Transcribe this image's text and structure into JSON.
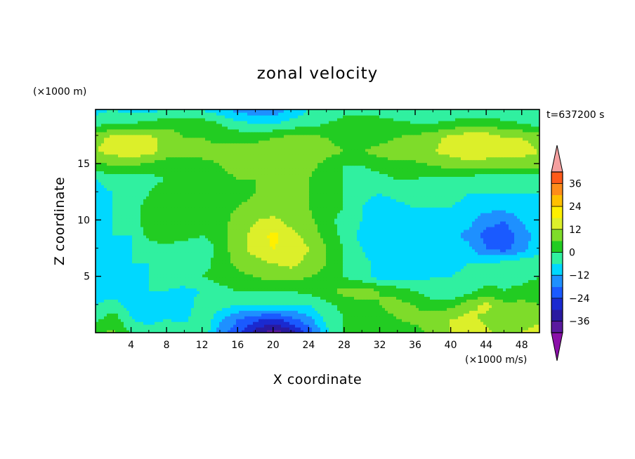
{
  "chart_data": {
    "type": "heatmap",
    "title": "zonal velocity",
    "xlabel": "X coordinate",
    "ylabel": "Z coordinate",
    "x_unit": "(×1000 m/s)",
    "y_unit": "(×1000 m)",
    "time_label": "t=637200 s",
    "xlim": [
      0,
      50
    ],
    "ylim": [
      0,
      19.8
    ],
    "x_ticks": [
      4,
      8,
      12,
      16,
      20,
      24,
      28,
      32,
      36,
      40,
      44,
      48
    ],
    "y_ticks": [
      5,
      10,
      15
    ],
    "colorbar": {
      "levels": [
        -42,
        -36,
        -30,
        -24,
        -18,
        -12,
        -6,
        0,
        6,
        12,
        18,
        24,
        30,
        36,
        42
      ],
      "tick_labels": [
        36,
        24,
        12,
        0,
        -12,
        -24,
        -36
      ],
      "colors": [
        "#5a1a9e",
        "#2a1aa0",
        "#1a2ad0",
        "#1a5aff",
        "#1e90ff",
        "#00d8ff",
        "#30f0a0",
        "#22cc22",
        "#7edc2a",
        "#dcef2a",
        "#fff000",
        "#ffc000",
        "#ff8c1a",
        "#ff5a1a",
        "#e81a1a",
        "#f5a0a0"
      ],
      "under_color": "#8a10a8",
      "over_color": "#f5a0a0"
    },
    "grid": false,
    "z_samples": [
      [
        5,
        7,
        0,
        0,
        0,
        0,
        0,
        -16,
        -22,
        -33,
        -40,
        -33,
        -22,
        -8,
        0,
        0,
        0,
        0,
        3,
        8,
        12,
        18,
        14,
        8,
        12,
        16
      ],
      [
        -2,
        4,
        -6,
        -10,
        -6,
        -8,
        0,
        -10,
        -18,
        -22,
        -26,
        -20,
        -14,
        -4,
        0,
        2,
        4,
        6,
        8,
        10,
        12,
        14,
        10,
        6,
        8,
        10
      ],
      [
        -6,
        -4,
        -8,
        -12,
        -12,
        -10,
        -2,
        -4,
        -6,
        -6,
        -6,
        -6,
        -6,
        -2,
        2,
        4,
        6,
        8,
        6,
        2,
        4,
        10,
        14,
        8,
        8,
        6
      ],
      [
        -8,
        -8,
        -10,
        -6,
        -6,
        -8,
        -6,
        -2,
        0,
        0,
        0,
        0,
        2,
        4,
        8,
        10,
        6,
        4,
        0,
        -4,
        -6,
        -2,
        2,
        0,
        2,
        4
      ],
      [
        -10,
        -8,
        -8,
        -6,
        -4,
        -2,
        0,
        2,
        4,
        6,
        8,
        8,
        6,
        4,
        0,
        -4,
        -8,
        -10,
        -8,
        -6,
        -6,
        -4,
        -2,
        -2,
        -2,
        0
      ],
      [
        -8,
        -6,
        -6,
        -6,
        -4,
        -2,
        -2,
        2,
        8,
        10,
        12,
        14,
        10,
        6,
        0,
        -4,
        -8,
        -12,
        -12,
        -10,
        -8,
        -6,
        -6,
        -4,
        -2,
        -2
      ],
      [
        -12,
        -8,
        -6,
        -4,
        -2,
        -4,
        -4,
        2,
        10,
        14,
        18,
        16,
        12,
        6,
        0,
        -6,
        -10,
        -12,
        -10,
        -8,
        -8,
        -10,
        -18,
        -20,
        -14,
        -8
      ],
      [
        -8,
        -6,
        -6,
        2,
        4,
        2,
        0,
        2,
        10,
        14,
        20,
        14,
        10,
        4,
        -2,
        -8,
        -10,
        -12,
        -10,
        -8,
        -10,
        -14,
        -20,
        -22,
        -16,
        -8
      ],
      [
        -10,
        -6,
        -4,
        4,
        6,
        2,
        2,
        4,
        8,
        12,
        14,
        10,
        8,
        2,
        -2,
        -6,
        -10,
        -10,
        -8,
        -6,
        -8,
        -10,
        -16,
        -18,
        -12,
        -6
      ],
      [
        -8,
        -6,
        -2,
        2,
        2,
        0,
        2,
        4,
        6,
        8,
        8,
        6,
        6,
        2,
        0,
        -6,
        -10,
        -8,
        -6,
        -6,
        -6,
        -8,
        -10,
        -10,
        -8,
        -6
      ],
      [
        -8,
        -6,
        -4,
        0,
        4,
        2,
        0,
        2,
        4,
        6,
        6,
        8,
        6,
        2,
        0,
        -4,
        -6,
        -4,
        -2,
        -4,
        -4,
        -6,
        -6,
        -6,
        -6,
        -6
      ],
      [
        -6,
        -4,
        -4,
        -2,
        0,
        0,
        0,
        4,
        6,
        6,
        6,
        8,
        6,
        2,
        0,
        -2,
        -2,
        0,
        0,
        -2,
        -2,
        -4,
        -4,
        -4,
        -4,
        -4
      ],
      [
        4,
        6,
        6,
        4,
        2,
        2,
        4,
        6,
        8,
        10,
        12,
        10,
        8,
        4,
        0,
        0,
        2,
        4,
        4,
        6,
        8,
        10,
        8,
        8,
        8,
        8
      ],
      [
        12,
        14,
        16,
        14,
        10,
        8,
        8,
        8,
        8,
        10,
        10,
        10,
        10,
        8,
        6,
        6,
        8,
        10,
        10,
        12,
        14,
        16,
        16,
        14,
        14,
        12
      ],
      [
        10,
        14,
        16,
        14,
        10,
        6,
        6,
        4,
        4,
        4,
        6,
        8,
        8,
        6,
        4,
        4,
        4,
        6,
        8,
        10,
        14,
        16,
        16,
        12,
        12,
        10
      ],
      [
        -2,
        0,
        0,
        2,
        4,
        4,
        4,
        0,
        -4,
        -6,
        -6,
        -4,
        -2,
        0,
        2,
        4,
        4,
        2,
        0,
        0,
        2,
        4,
        4,
        2,
        0,
        -2
      ],
      [
        -8,
        -6,
        -8,
        -8,
        -6,
        -6,
        -6,
        -10,
        -14,
        -16,
        -16,
        -10,
        -6,
        -4,
        -2,
        -2,
        -4,
        -6,
        -6,
        -6,
        -6,
        -6,
        -4,
        -6,
        -6,
        -6
      ]
    ]
  }
}
